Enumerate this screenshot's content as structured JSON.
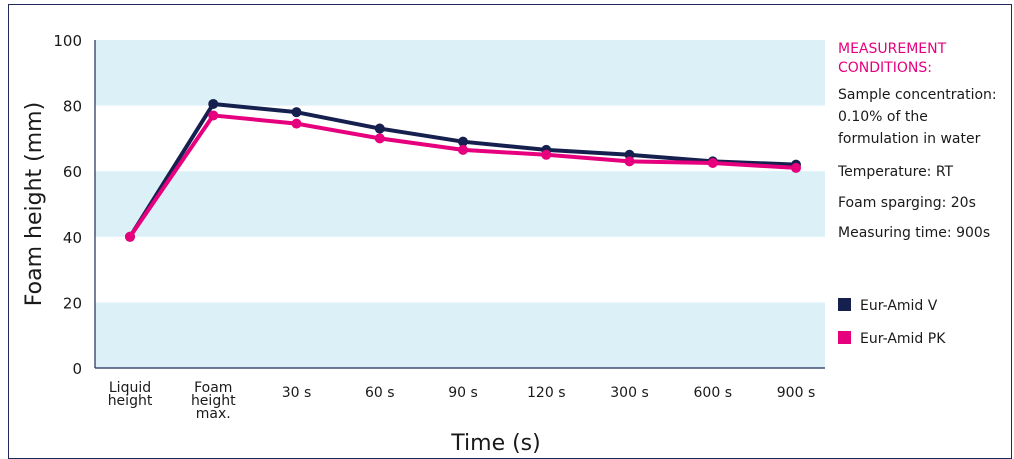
{
  "chart_data": {
    "type": "line",
    "xlabel": "Time (s)",
    "ylabel": "Foam height (mm)",
    "ylim": [
      0,
      100
    ],
    "yticks": [
      "0",
      "20",
      "40",
      "60",
      "80",
      "100"
    ],
    "grid": "alternating horizontal bands",
    "categories": [
      [
        "Liquid",
        "height"
      ],
      [
        "Foam",
        "height",
        "max."
      ],
      [
        "30 s"
      ],
      [
        "60 s"
      ],
      [
        "90 s"
      ],
      [
        "120 s"
      ],
      [
        "300 s"
      ],
      [
        "600 s"
      ],
      [
        "900 s"
      ]
    ],
    "series": [
      {
        "name": "Eur-Amid V",
        "color": "#16204f",
        "values": [
          40,
          80.5,
          78,
          73,
          69,
          66.5,
          65,
          63,
          62
        ]
      },
      {
        "name": "Eur-Amid PK",
        "color": "#e6007e",
        "values": [
          40,
          77,
          74.5,
          70,
          66.5,
          65,
          63,
          62.5,
          61
        ]
      }
    ],
    "legend_position": "right",
    "colors": {
      "band": "#dcf0f8",
      "accent": "#e6007e",
      "axis": "#1f2a5c"
    }
  },
  "notes": {
    "heading": [
      "MEASUREMENT",
      "CONDITIONS:"
    ],
    "lines": [
      "Sample concentration:",
      "0.10% of the",
      "formulation in water",
      "Temperature: RT",
      "Foam sparging: 20s",
      "Measuring time: 900s"
    ]
  }
}
